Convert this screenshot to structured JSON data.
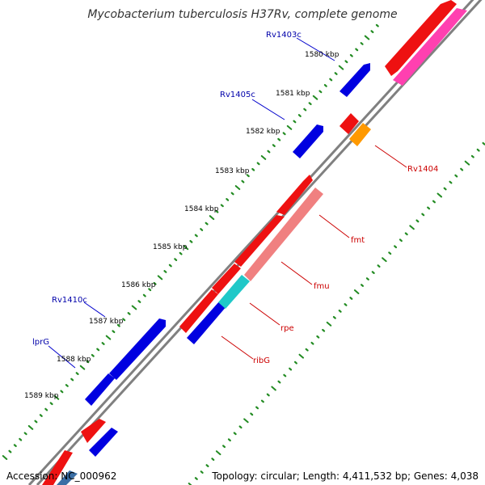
{
  "title": "Mycobacterium tuberculosis H37Rv, complete genome",
  "footer": {
    "accession": "Accession: NC_000962",
    "topology": "Topology: circular; Length: 4,411,532 bp; Genes: 4,038"
  },
  "ticks": [
    {
      "label": "1580 kbp"
    },
    {
      "label": "1581 kbp"
    },
    {
      "label": "1582 kbp"
    },
    {
      "label": "1583 kbp"
    },
    {
      "label": "1584 kbp"
    },
    {
      "label": "1585 kbp"
    },
    {
      "label": "1586 kbp"
    },
    {
      "label": "1587 kbp"
    },
    {
      "label": "1588 kbp"
    },
    {
      "label": "1589 kbp"
    }
  ],
  "labels": {
    "reverse": [
      "Rv1403c",
      "Rv1405c",
      "Rv1410c",
      "lprG"
    ],
    "forward": [
      "Rv1404",
      "fmt",
      "fmu",
      "rpe",
      "ribG"
    ]
  },
  "colors": {
    "backbone": "#808080",
    "tick": "#228B22",
    "reverse_gene": "#0000E0",
    "forward_gene": "#EE1111",
    "fmu": "#F08080",
    "rpe": "#20C8C8",
    "Rv1404": "#FF9900",
    "magenta": "#FF40B0",
    "reverse_label": "#0000AA",
    "forward_label": "#CC0000"
  }
}
